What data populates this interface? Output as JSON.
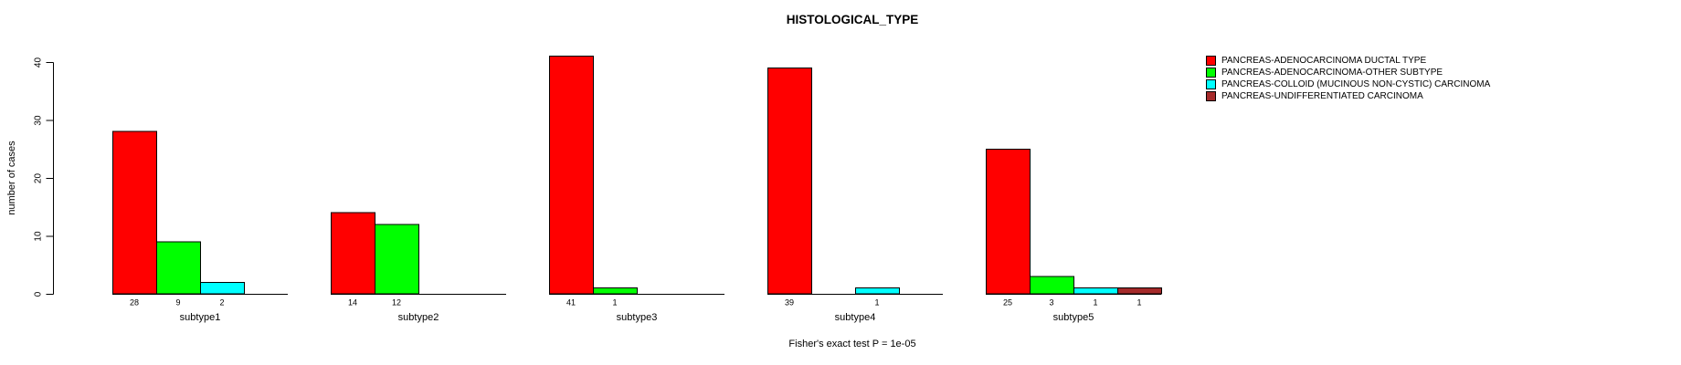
{
  "chart_data": {
    "type": "bar",
    "title": "HISTOLOGICAL_TYPE",
    "ylabel": "number of cases",
    "ylim": [
      0,
      40
    ],
    "yticks": [
      0,
      10,
      20,
      30,
      40
    ],
    "grid": false,
    "legend_position": "right",
    "caption": "Fisher's exact test P = 1e-05",
    "series": [
      {
        "name": "PANCREAS-ADENOCARCINOMA DUCTAL TYPE",
        "color": "#FF0000"
      },
      {
        "name": "PANCREAS-ADENOCARCINOMA-OTHER SUBTYPE",
        "color": "#00FF00"
      },
      {
        "name": "PANCREAS-COLLOID (MUCINOUS NON-CYSTIC) CARCINOMA",
        "color": "#00FFFF"
      },
      {
        "name": "PANCREAS-UNDIFFERENTIATED CARCINOMA",
        "color": "#A52A2A"
      }
    ],
    "groups": [
      {
        "label": "subtype1",
        "values": [
          28,
          9,
          2,
          0
        ]
      },
      {
        "label": "subtype2",
        "values": [
          14,
          12,
          0,
          0
        ]
      },
      {
        "label": "subtype3",
        "values": [
          41,
          1,
          0,
          0
        ]
      },
      {
        "label": "subtype4",
        "values": [
          39,
          0,
          1,
          0
        ]
      },
      {
        "label": "subtype5",
        "values": [
          25,
          3,
          1,
          1
        ]
      }
    ]
  }
}
